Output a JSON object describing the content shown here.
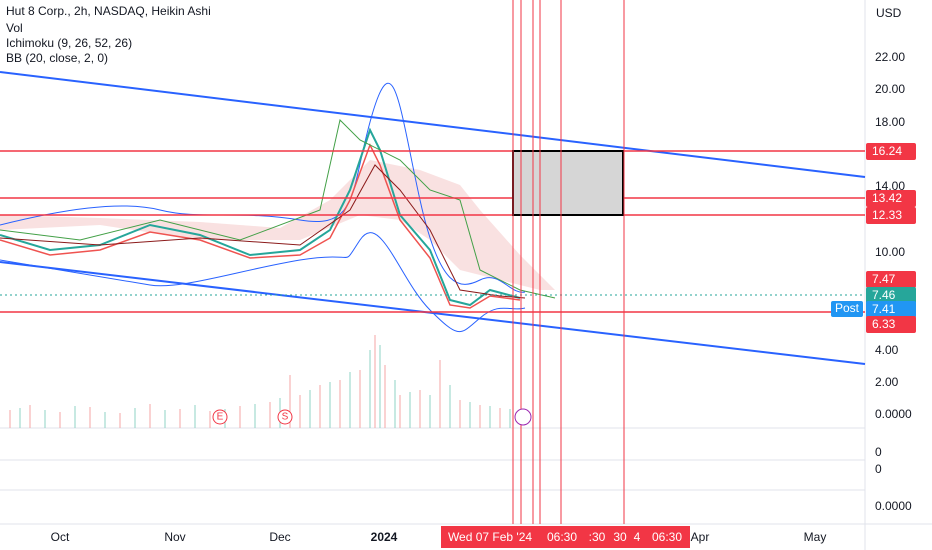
{
  "header": {
    "title": "Hut 8 Corp., 2h, NASDAQ, Heikin Ashi",
    "indicators": [
      "Vol",
      "Ichimoku (9, 26, 52, 26)",
      "BB (20, close, 2, 0)"
    ]
  },
  "currency": "USD",
  "price_axis": [
    "22.00",
    "20.00",
    "18.00",
    "14.00",
    "10.00",
    "4.00",
    "2.00",
    "0.0000"
  ],
  "price_tags": {
    "upper": "16.24",
    "box_top": "13.42",
    "box_bottom": "12.33",
    "high": "7.47",
    "last": "7.46",
    "post_label": "Post",
    "post": "7.41",
    "low": "6.33"
  },
  "pane_axes": [
    "0",
    "0",
    "0.0000"
  ],
  "time_axis": [
    "Oct",
    "Nov",
    "Dec",
    "2024",
    "Apr",
    "May"
  ],
  "time_cursor": [
    "Wed 07 Feb '24",
    "06:30",
    ":30",
    "30",
    "4",
    "06:30"
  ],
  "markers": [
    "E",
    "S"
  ]
}
